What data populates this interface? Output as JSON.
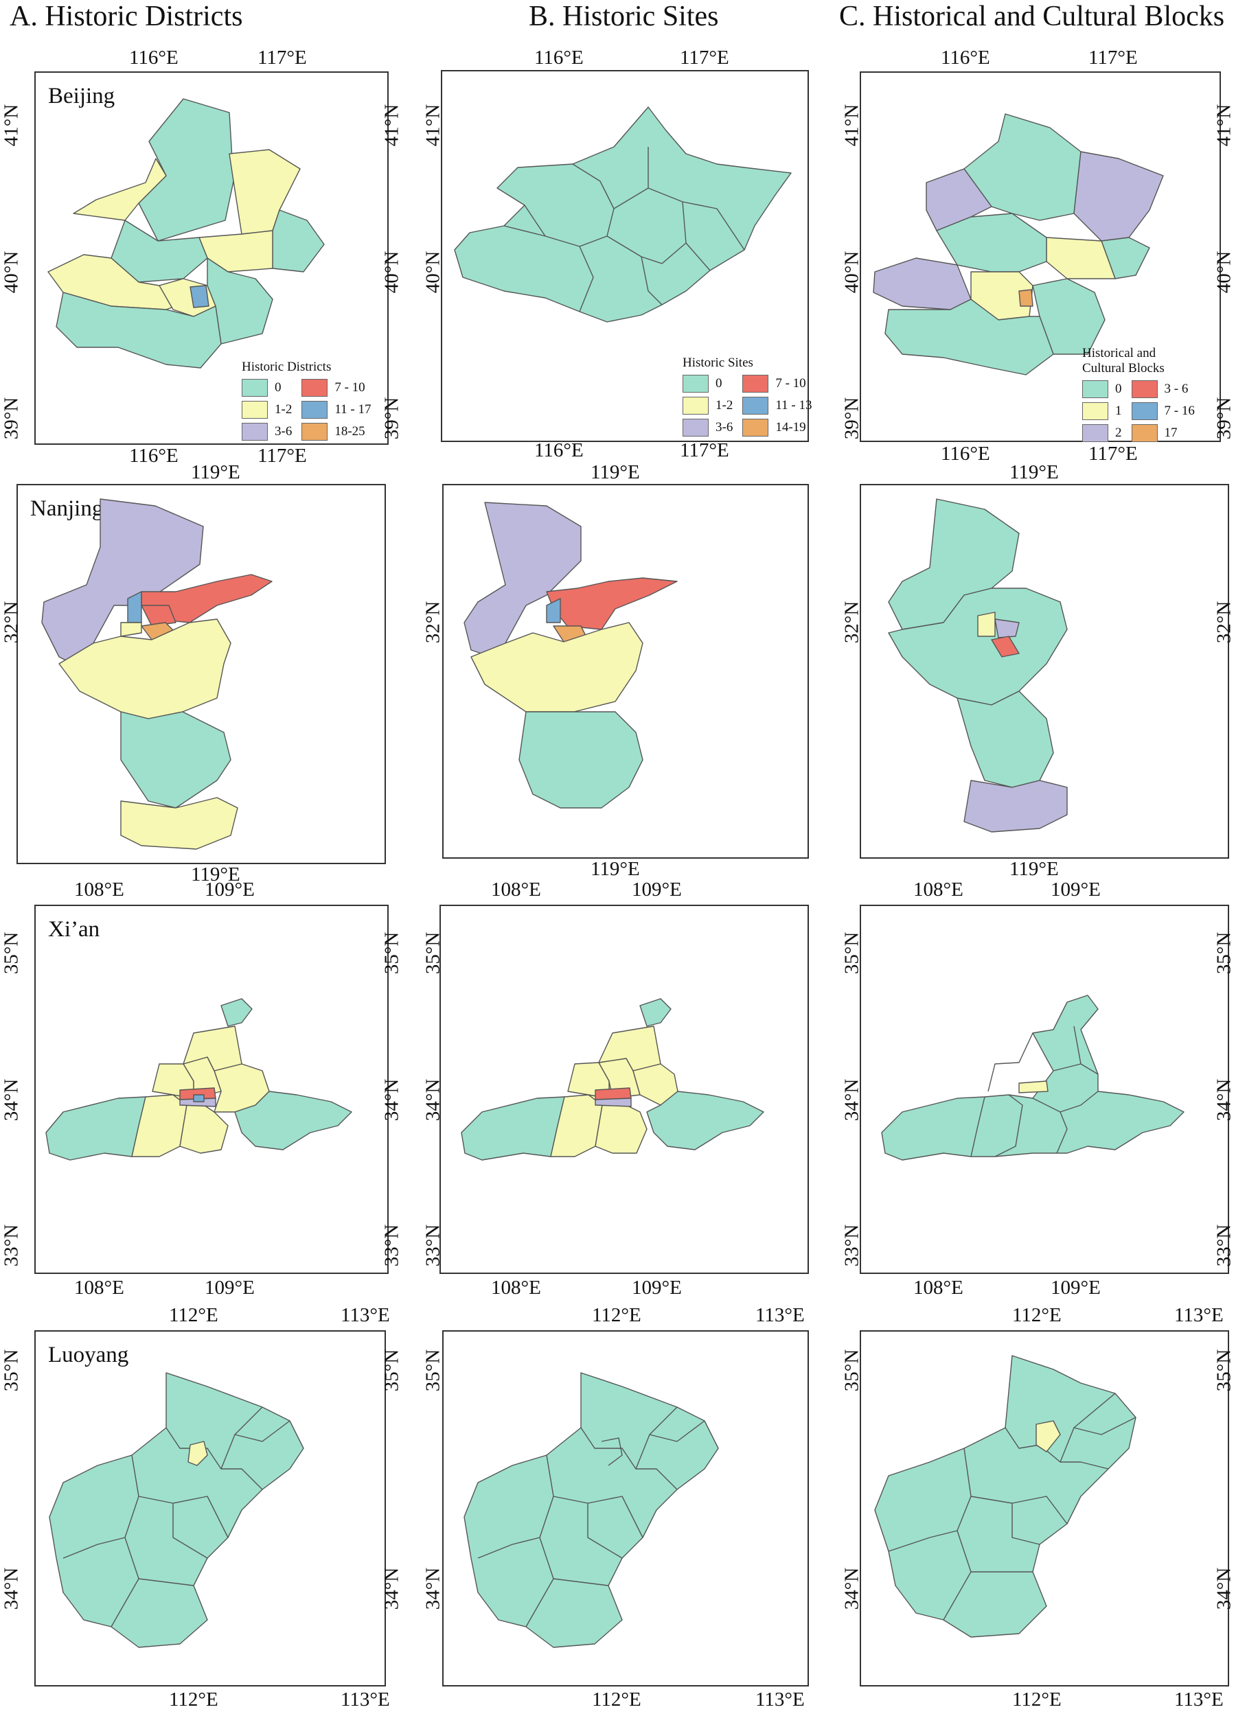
{
  "columns": [
    {
      "title": "A. Historic Districts"
    },
    {
      "title": "B. Historic Sites"
    },
    {
      "title": "C. Historical and Cultural Blocks"
    }
  ],
  "colors": {
    "c0": "#9ee0cc",
    "c1": "#f6f8b3",
    "c2": "#bdb9dc",
    "c3": "#ec7066",
    "c4": "#78acd3",
    "c5": "#eba963"
  },
  "rows": [
    {
      "city": "Beijing",
      "lon_ticks": [
        "116°E",
        "117°E"
      ],
      "lat_ticks": [
        "41°N",
        "40°N",
        "39°N"
      ],
      "legends": [
        {
          "title": "Historic Districts",
          "items": [
            "0",
            "7 - 10",
            "1-2",
            "11 - 17",
            "3-6",
            "18-25"
          ]
        },
        {
          "title": "Historic Sites",
          "items": [
            "0",
            "7 - 10",
            "1-2",
            "11 - 13",
            "3-6",
            "14-19"
          ]
        },
        {
          "title": "Historical and Cultural Blocks",
          "items": [
            "0",
            "3 - 6",
            "1",
            "7 - 16",
            "2",
            "17"
          ]
        }
      ]
    },
    {
      "city": "Nanjing",
      "lon_ticks": [
        "119°E"
      ],
      "lat_ticks": [
        "32°N"
      ]
    },
    {
      "city": "Xi’an",
      "lon_ticks": [
        "108°E",
        "109°E"
      ],
      "lat_ticks": [
        "35°N",
        "34°N",
        "33°N"
      ]
    },
    {
      "city": "Luoyang",
      "lon_ticks": [
        "112°E",
        "113°E"
      ],
      "lat_ticks": [
        "35°N",
        "34°N"
      ]
    }
  ]
}
